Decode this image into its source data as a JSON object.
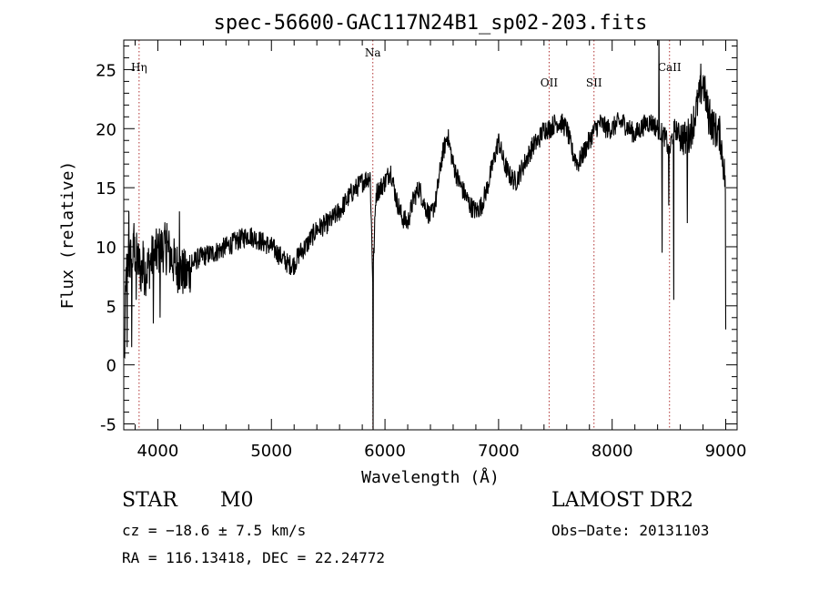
{
  "chart_data": {
    "type": "line",
    "title": "spec-56600-GAC117N24B1_sp02-203.fits",
    "xlabel": "Wavelength (Å)",
    "ylabel": "Flux (relative)",
    "xlim": [
      3700,
      9100
    ],
    "ylim": [
      -5.5,
      27.5
    ],
    "xticks": [
      4000,
      5000,
      6000,
      7000,
      8000,
      9000
    ],
    "yticks": [
      -5,
      0,
      5,
      10,
      15,
      20,
      25
    ],
    "grid": false,
    "series_color": "#000000",
    "line_marker_color": "#b03030",
    "line_markers": [
      {
        "label": "Hη",
        "x": 3835
      },
      {
        "label": "Na",
        "x": 5893
      },
      {
        "label": "OII",
        "x": 7445
      },
      {
        "label": "SII",
        "x": 7840
      },
      {
        "label": "CaII",
        "x": 8505
      }
    ],
    "spectrum_anchors": [
      [
        3705,
        0.0
      ],
      [
        3720,
        7.5
      ],
      [
        3760,
        9.0
      ],
      [
        3800,
        9.5
      ],
      [
        3850,
        8.0
      ],
      [
        3900,
        8.0
      ],
      [
        3950,
        9.0
      ],
      [
        4000,
        9.5
      ],
      [
        4050,
        10.0
      ],
      [
        4100,
        9.5
      ],
      [
        4150,
        8.5
      ],
      [
        4200,
        8.0
      ],
      [
        4250,
        7.5
      ],
      [
        4300,
        8.5
      ],
      [
        4350,
        9.0
      ],
      [
        4400,
        9.2
      ],
      [
        4500,
        9.5
      ],
      [
        4600,
        10.0
      ],
      [
        4700,
        10.5
      ],
      [
        4800,
        11.0
      ],
      [
        4900,
        10.5
      ],
      [
        5000,
        10.0
      ],
      [
        5100,
        9.0
      ],
      [
        5150,
        8.5
      ],
      [
        5200,
        8.5
      ],
      [
        5250,
        9.5
      ],
      [
        5300,
        10.0
      ],
      [
        5400,
        11.5
      ],
      [
        5500,
        12.0
      ],
      [
        5600,
        13.0
      ],
      [
        5700,
        14.5
      ],
      [
        5800,
        15.5
      ],
      [
        5870,
        16.0
      ],
      [
        5893,
        7.0
      ],
      [
        5920,
        14.5
      ],
      [
        6000,
        15.5
      ],
      [
        6050,
        16.5
      ],
      [
        6100,
        14.0
      ],
      [
        6150,
        12.5
      ],
      [
        6200,
        12.0
      ],
      [
        6250,
        14.0
      ],
      [
        6300,
        15.0
      ],
      [
        6350,
        13.5
      ],
      [
        6400,
        12.5
      ],
      [
        6450,
        14.0
      ],
      [
        6500,
        17.5
      ],
      [
        6550,
        19.5
      ],
      [
        6600,
        17.0
      ],
      [
        6650,
        15.5
      ],
      [
        6700,
        14.5
      ],
      [
        6750,
        13.5
      ],
      [
        6800,
        13.0
      ],
      [
        6850,
        13.5
      ],
      [
        6900,
        15.0
      ],
      [
        6950,
        17.0
      ],
      [
        7000,
        19.0
      ],
      [
        7050,
        17.0
      ],
      [
        7100,
        16.0
      ],
      [
        7150,
        15.5
      ],
      [
        7200,
        16.5
      ],
      [
        7250,
        17.5
      ],
      [
        7300,
        18.5
      ],
      [
        7350,
        19.0
      ],
      [
        7400,
        20.0
      ],
      [
        7450,
        20.0
      ],
      [
        7500,
        20.5
      ],
      [
        7550,
        20.5
      ],
      [
        7600,
        20.0
      ],
      [
        7650,
        18.0
      ],
      [
        7700,
        17.0
      ],
      [
        7750,
        18.0
      ],
      [
        7800,
        19.0
      ],
      [
        7850,
        20.0
      ],
      [
        7900,
        20.5
      ],
      [
        7950,
        20.0
      ],
      [
        8000,
        20.0
      ],
      [
        8050,
        20.5
      ],
      [
        8100,
        20.5
      ],
      [
        8150,
        20.0
      ],
      [
        8200,
        19.5
      ],
      [
        8250,
        20.0
      ],
      [
        8300,
        20.5
      ],
      [
        8350,
        20.5
      ],
      [
        8400,
        20.0
      ],
      [
        8450,
        19.5
      ],
      [
        8480,
        19.0
      ],
      [
        8500,
        17.5
      ],
      [
        8520,
        19.0
      ],
      [
        8550,
        20.0
      ],
      [
        8600,
        19.5
      ],
      [
        8650,
        19.0
      ],
      [
        8700,
        20.0
      ],
      [
        8750,
        22.0
      ],
      [
        8800,
        24.0
      ],
      [
        8850,
        21.0
      ],
      [
        8900,
        20.0
      ],
      [
        8950,
        19.5
      ],
      [
        8980,
        17.0
      ],
      [
        9000,
        15.0
      ]
    ],
    "spectrum_spikes": [
      [
        3730,
        1.5
      ],
      [
        3745,
        13.0
      ],
      [
        3770,
        1.5
      ],
      [
        3790,
        12.0
      ],
      [
        3810,
        5.5
      ],
      [
        3870,
        10.5
      ],
      [
        3960,
        3.5
      ],
      [
        4020,
        4.0
      ],
      [
        4080,
        12.0
      ],
      [
        4190,
        13.0
      ],
      [
        5895,
        -6.0
      ],
      [
        8412,
        28.5
      ],
      [
        8440,
        9.5
      ],
      [
        8498,
        13.5
      ],
      [
        8542,
        5.5
      ],
      [
        8662,
        12.0
      ],
      [
        8780,
        25.5
      ],
      [
        8860,
        22.5
      ],
      [
        8935,
        20.5
      ],
      [
        9000,
        3.0
      ]
    ]
  },
  "footer": {
    "object_class": "STAR",
    "subclass": "M0",
    "survey": "LAMOST DR2",
    "redshift": "cz = −18.6 ± 7.5 km/s",
    "obs_date": "Obs−Date: 20131103",
    "coordinates": "RA = 116.13418, DEC =  22.24772"
  }
}
